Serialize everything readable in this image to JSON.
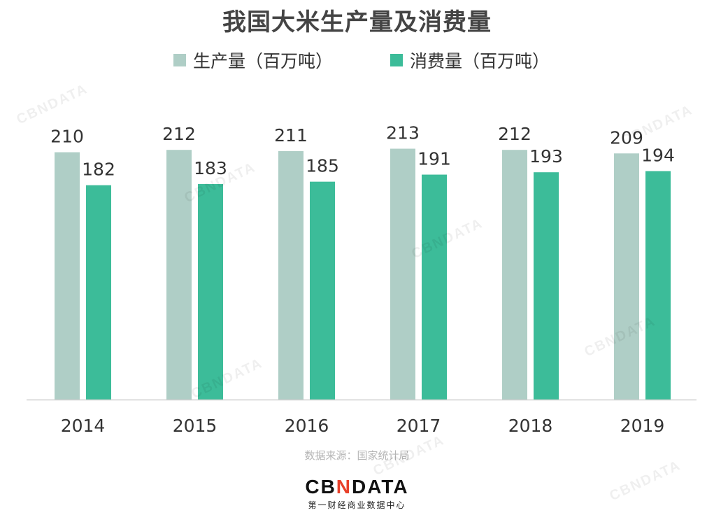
{
  "title": "我国大米生产量及消费量",
  "source": "数据来源：国家统计局",
  "brand": {
    "logo_prefix": "CB",
    "logo_accent": "N",
    "logo_suffix": "DATA",
    "subtitle": "第一财经商业数据中心",
    "watermark": "CBNDATA"
  },
  "colors": {
    "production": "#afcec6",
    "consumption": "#3cbc99",
    "axis": "#d0d0d0"
  },
  "chart_data": {
    "type": "bar",
    "title": "我国大米生产量及消费量",
    "categories": [
      "2014",
      "2015",
      "2016",
      "2017",
      "2018",
      "2019"
    ],
    "series": [
      {
        "name": "生产量（百万吨）",
        "values": [
          210,
          212,
          211,
          213,
          212,
          209
        ]
      },
      {
        "name": "消费量（百万吨）",
        "values": [
          182,
          183,
          185,
          191,
          193,
          194
        ]
      }
    ],
    "xlabel": "",
    "ylabel": "",
    "ylim": [
      0,
      230
    ],
    "grid": false,
    "legend": "top-center",
    "data_labels": true
  }
}
